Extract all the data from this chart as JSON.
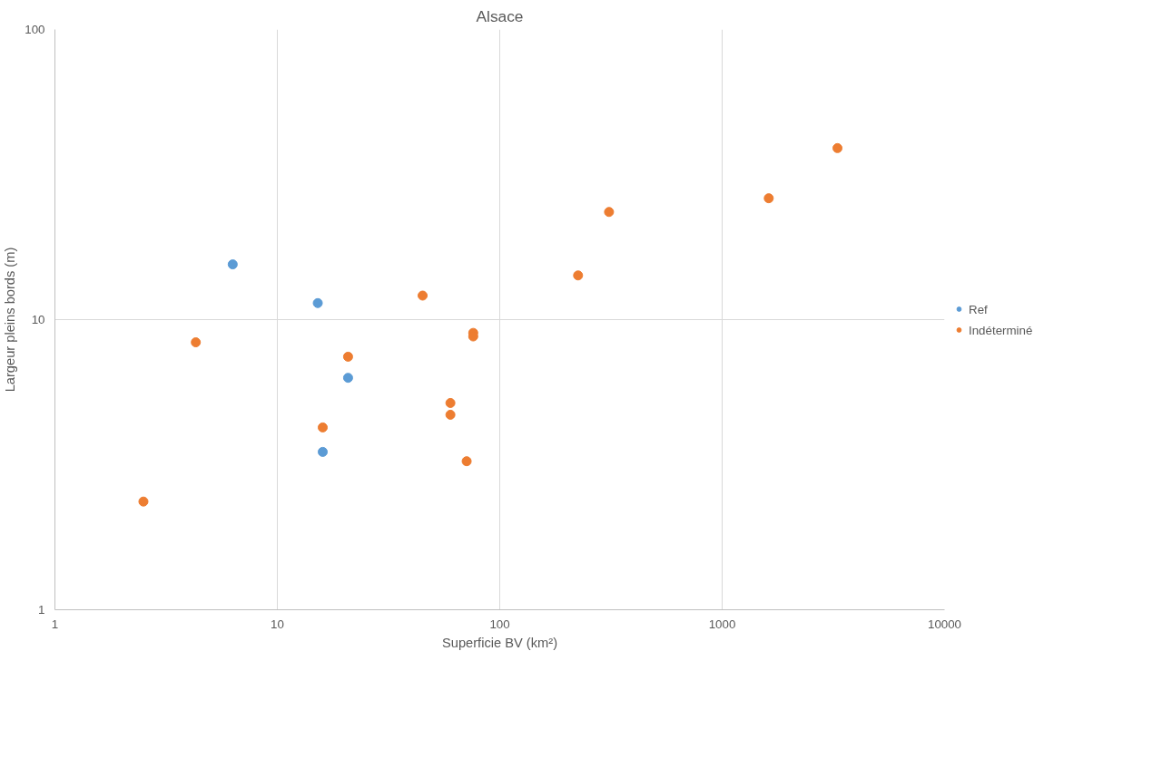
{
  "chart_data": {
    "type": "scatter",
    "title": "Alsace",
    "xlabel": "Superficie BV (km²)",
    "ylabel": "Largeur pleins bords (m)",
    "log": "xy",
    "xlim": [
      1,
      10000
    ],
    "ylim": [
      1,
      100
    ],
    "xticks": [
      1,
      10,
      100,
      1000,
      10000
    ],
    "yticks": [
      1,
      10,
      100
    ],
    "grid": true,
    "legend": "right",
    "marker": "circle",
    "series": [
      {
        "name": "Ref",
        "color": "#5b9bd5",
        "x": [
          6.3,
          15.2,
          20.8,
          16.0
        ],
        "values": [
          15.5,
          11.4,
          6.3,
          3.5
        ]
      },
      {
        "name": "Indéterminé",
        "color": "#ed7d31",
        "x": [
          2.5,
          4.3,
          20.8,
          16.0,
          45,
          60,
          60,
          71,
          76,
          76,
          225,
          310,
          1620,
          3300
        ],
        "values": [
          2.36,
          8.35,
          7.45,
          4.25,
          12.1,
          5.16,
          4.7,
          3.25,
          9.0,
          8.75,
          14.2,
          23.5,
          26.2,
          39
        ]
      }
    ]
  }
}
